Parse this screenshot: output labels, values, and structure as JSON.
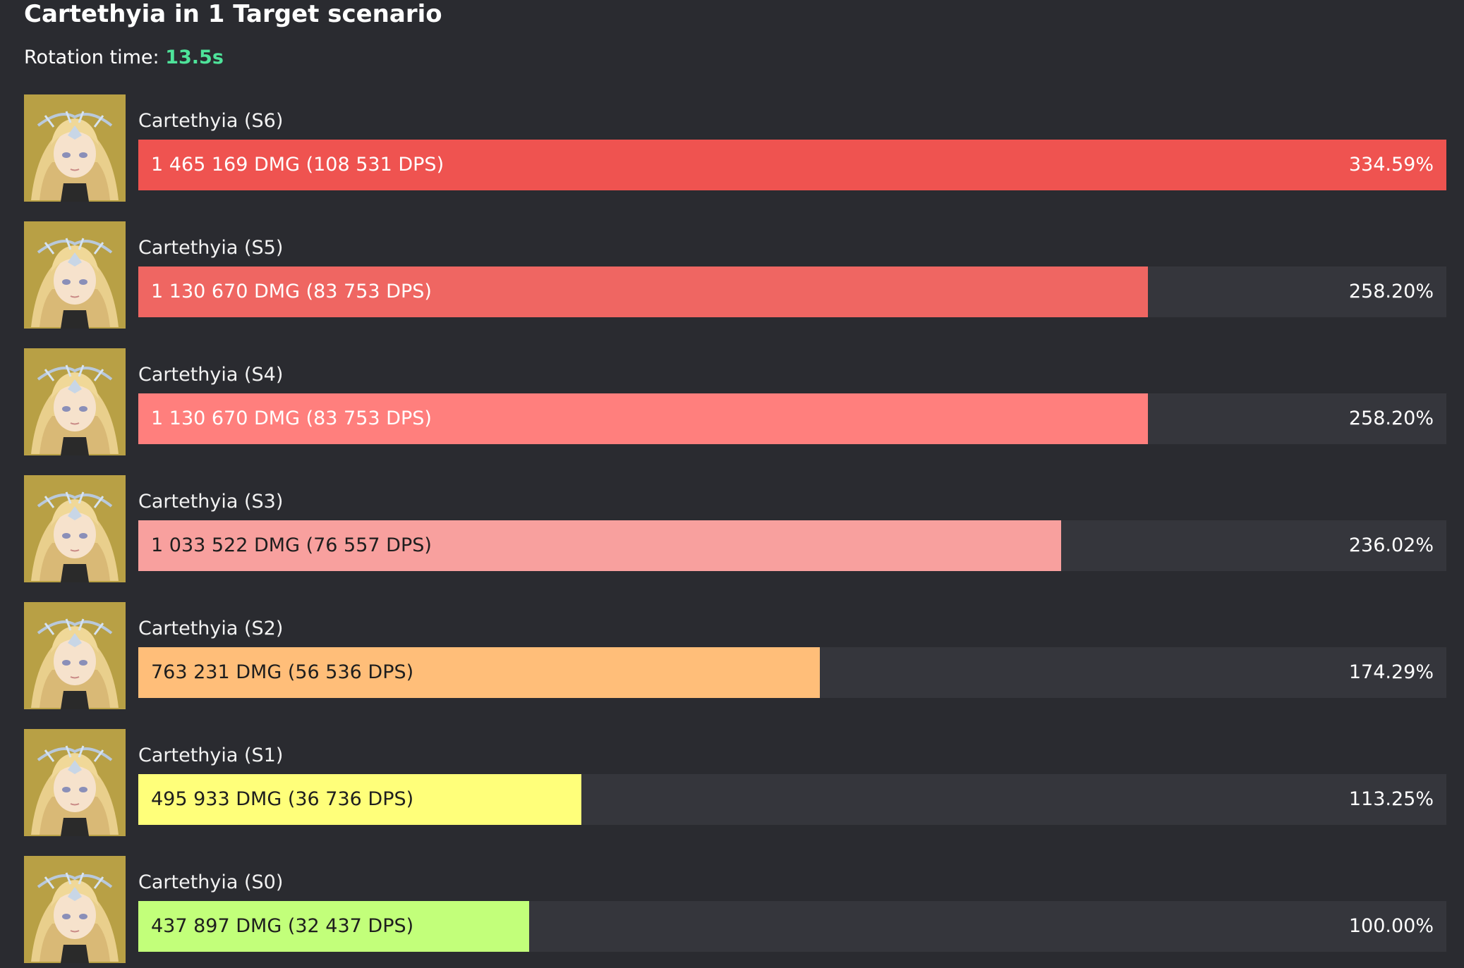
{
  "title": "Cartethyia in 1 Target scenario",
  "rotation_label": "Rotation time:",
  "rotation_value": "13.5s",
  "chart_data": {
    "type": "bar",
    "orientation": "horizontal",
    "title": "Cartethyia in 1 Target scenario",
    "categories": [
      "Cartethyia (S6)",
      "Cartethyia (S5)",
      "Cartethyia (S4)",
      "Cartethyia (S3)",
      "Cartethyia (S2)",
      "Cartethyia (S1)",
      "Cartethyia (S0)"
    ],
    "values": [
      1465169,
      1130670,
      1130670,
      1033522,
      763231,
      495933,
      437897
    ],
    "dps": [
      108531,
      83753,
      83753,
      76557,
      56536,
      36736,
      32437
    ],
    "percent": [
      334.59,
      258.2,
      258.2,
      236.02,
      174.29,
      113.25,
      100.0
    ],
    "value_labels": [
      "1 465 169 DMG (108 531 DPS)",
      "1 130 670 DMG (83 753 DPS)",
      "1 130 670 DMG (83 753 DPS)",
      "1 033 522 DMG (76 557 DPS)",
      "763 231 DMG (56 536 DPS)",
      "495 933 DMG (36 736 DPS)",
      "437 897 DMG (32 437 DPS)"
    ],
    "percent_labels": [
      "334.59%",
      "258.20%",
      "258.20%",
      "236.02%",
      "174.29%",
      "113.25%",
      "100.00%"
    ],
    "colors": [
      "#ef5350",
      "#ef6662",
      "#ff7f7d",
      "#f8a09e",
      "#ffbe79",
      "#ffff7a",
      "#c2ff7a"
    ],
    "xlim": [
      0,
      1465169
    ],
    "grid": false,
    "legend": "none"
  }
}
